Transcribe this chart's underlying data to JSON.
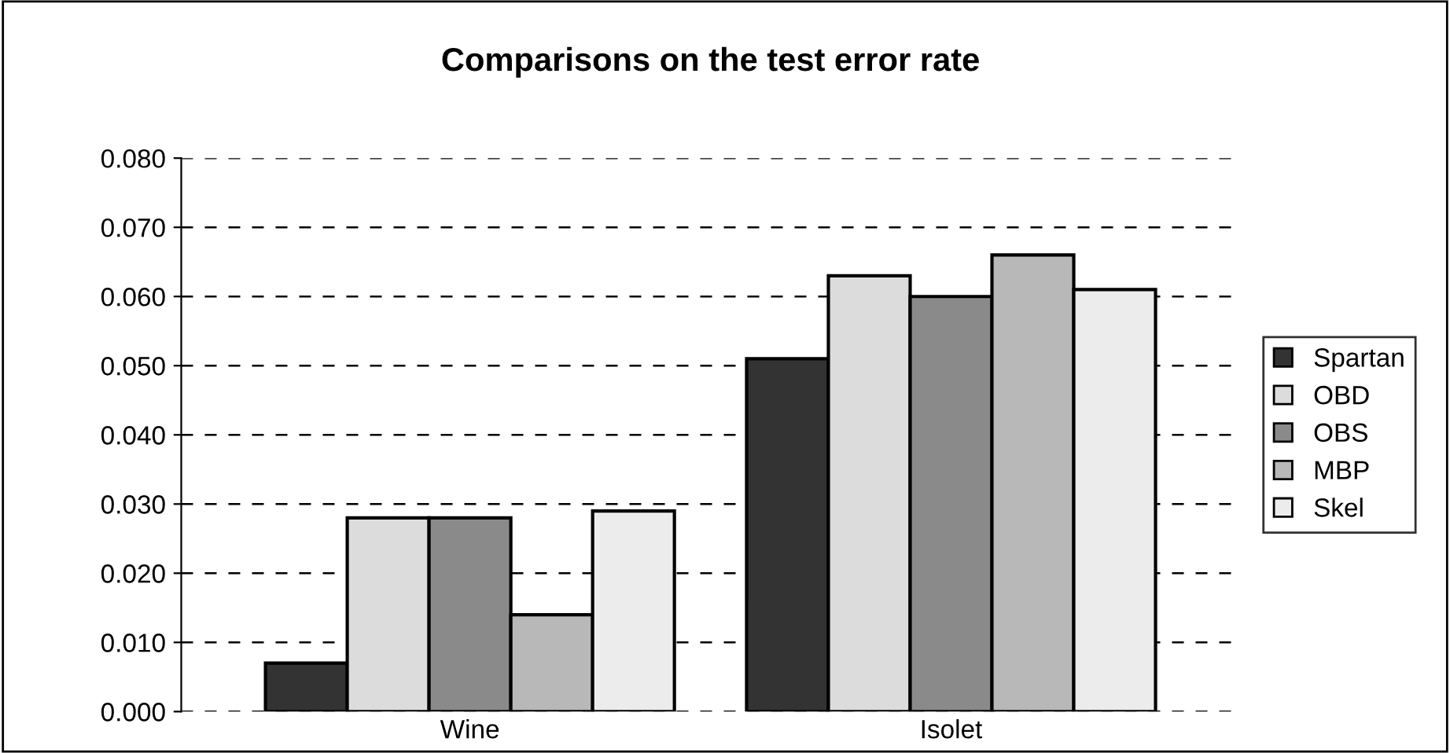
{
  "chart_data": {
    "type": "bar",
    "title": "Comparisons on the test error rate",
    "categories": [
      "Wine",
      "Isolet"
    ],
    "series": [
      {
        "name": "Spartan",
        "color": "#333333",
        "values": [
          0.007,
          0.051
        ]
      },
      {
        "name": "OBD",
        "color": "#dcdcdc",
        "values": [
          0.028,
          0.063
        ]
      },
      {
        "name": "OBS",
        "color": "#8a8a8a",
        "values": [
          0.028,
          0.06
        ]
      },
      {
        "name": "MBP",
        "color": "#b8b8b8",
        "values": [
          0.014,
          0.066
        ]
      },
      {
        "name": "Skel",
        "color": "#ececec",
        "values": [
          0.029,
          0.061
        ]
      }
    ],
    "ylim": [
      0,
      0.08
    ],
    "yticks": [
      {
        "value": 0,
        "label": "0.000"
      },
      {
        "value": 0.01,
        "label": "0.010"
      },
      {
        "value": 0.02,
        "label": "0.020"
      },
      {
        "value": 0.03,
        "label": "0.030"
      },
      {
        "value": 0.04,
        "label": "0.040"
      },
      {
        "value": 0.05,
        "label": "0.050"
      },
      {
        "value": 0.06,
        "label": "0.060"
      },
      {
        "value": 0.07,
        "label": "0.070"
      },
      {
        "value": 0.08,
        "label": "0.080"
      }
    ],
    "grid": "y",
    "legend": "right"
  }
}
